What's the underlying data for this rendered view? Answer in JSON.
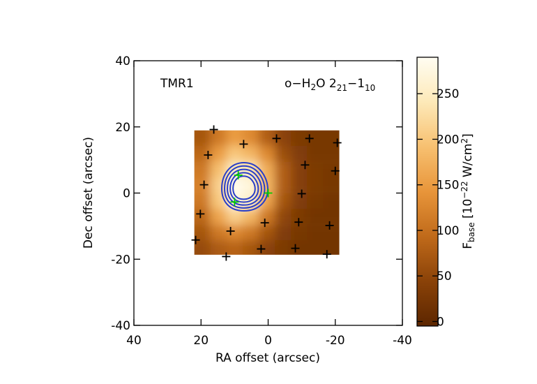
{
  "chart_data": {
    "type": "heatmap",
    "label": "TMR1",
    "title_parts": [
      "o−H",
      "2",
      "O 2",
      "21",
      "−1",
      "10"
    ],
    "xlabel": "RA offset (arcsec)",
    "ylabel": "Dec offset (arcsec)",
    "xlim": [
      40,
      -40
    ],
    "ylim": [
      -40,
      40
    ],
    "xticks": [
      40,
      20,
      0,
      -20,
      -40
    ],
    "yticks": [
      -40,
      -20,
      0,
      20,
      40
    ],
    "x": [
      19.6,
      14.8,
      10.0,
      5.2,
      0.4,
      -4.4,
      -9.2,
      -14.0,
      -18.8
    ],
    "y": [
      16.6,
      11.9,
      7.1,
      2.4,
      -2.4,
      -7.1,
      -11.9,
      -16.6
    ],
    "z": [
      [
        70,
        110,
        150,
        130,
        80,
        45,
        30,
        25,
        25
      ],
      [
        90,
        150,
        200,
        180,
        130,
        60,
        35,
        25,
        25
      ],
      [
        110,
        190,
        250,
        240,
        170,
        80,
        40,
        30,
        25
      ],
      [
        120,
        210,
        285,
        270,
        180,
        80,
        40,
        30,
        25
      ],
      [
        110,
        200,
        275,
        255,
        160,
        70,
        35,
        25,
        20
      ],
      [
        90,
        160,
        210,
        180,
        110,
        50,
        30,
        20,
        20
      ],
      [
        70,
        110,
        130,
        110,
        70,
        35,
        25,
        20,
        20
      ],
      [
        55,
        75,
        85,
        70,
        45,
        30,
        20,
        20,
        20
      ]
    ],
    "colormap": [
      "#5c2600",
      "#8a4208",
      "#c06a1a",
      "#e8953a",
      "#f7c070",
      "#fde9b8",
      "#fffdf2"
    ],
    "zlim": [
      -5,
      290
    ],
    "zticks": [
      0,
      50,
      100,
      150,
      200,
      250
    ],
    "colorbar_label_parts": [
      "F",
      "base",
      " [10",
      "−22",
      " W/cm",
      "2",
      "]"
    ],
    "positions": {
      "color": "#000000",
      "x": [
        16.2,
        7.3,
        -2.5,
        -12.3,
        -20.6,
        17.9,
        -11.0,
        -20.0,
        19.1,
        -10.0,
        20.2,
        1.0,
        -9.1,
        -18.3,
        11.2,
        21.6,
        2.1,
        -8.1,
        12.5,
        -17.5
      ],
      "y": [
        19.2,
        14.8,
        16.5,
        16.5,
        15.2,
        11.5,
        8.5,
        6.7,
        2.5,
        -0.2,
        -6.3,
        -9.0,
        -8.8,
        -9.8,
        -11.5,
        -14.2,
        -16.9,
        -16.7,
        -19.2,
        -18.5
      ]
    },
    "highlight_positions": {
      "color": "#00cc00",
      "x": [
        8.9,
        0.0,
        10.0
      ],
      "y": [
        5.4,
        0.0,
        -2.7
      ]
    }
  }
}
